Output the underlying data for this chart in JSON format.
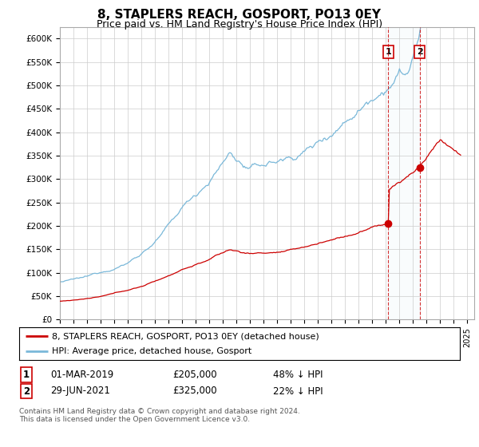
{
  "title": "8, STAPLERS REACH, GOSPORT, PO13 0EY",
  "subtitle": "Price paid vs. HM Land Registry's House Price Index (HPI)",
  "title_fontsize": 11,
  "subtitle_fontsize": 9,
  "ylabel_ticks": [
    "£0",
    "£50K",
    "£100K",
    "£150K",
    "£200K",
    "£250K",
    "£300K",
    "£350K",
    "£400K",
    "£450K",
    "£500K",
    "£550K",
    "£600K"
  ],
  "ytick_values": [
    0,
    50000,
    100000,
    150000,
    200000,
    250000,
    300000,
    350000,
    400000,
    450000,
    500000,
    550000,
    600000
  ],
  "ylim": [
    0,
    625000
  ],
  "hpi_color": "#7ab8d9",
  "price_color": "#cc0000",
  "vline_color": "#cc0000",
  "span_color": "#d0e8f5",
  "annotation_box_color": "#cc0000",
  "background_color": "#ffffff",
  "grid_color": "#cccccc",
  "legend_label_red": "8, STAPLERS REACH, GOSPORT, PO13 0EY (detached house)",
  "legend_label_blue": "HPI: Average price, detached house, Gosport",
  "transaction_1_date": "01-MAR-2019",
  "transaction_1_price": "£205,000",
  "transaction_1_hpi": "48% ↓ HPI",
  "transaction_1_x": 2019.17,
  "transaction_1_y": 205000,
  "transaction_2_date": "29-JUN-2021",
  "transaction_2_price": "£325,000",
  "transaction_2_hpi": "22% ↓ HPI",
  "transaction_2_x": 2021.49,
  "transaction_2_y": 325000,
  "footer_text": "Contains HM Land Registry data © Crown copyright and database right 2024.\nThis data is licensed under the Open Government Licence v3.0.",
  "xmin": 1995.0,
  "xmax": 2025.5
}
